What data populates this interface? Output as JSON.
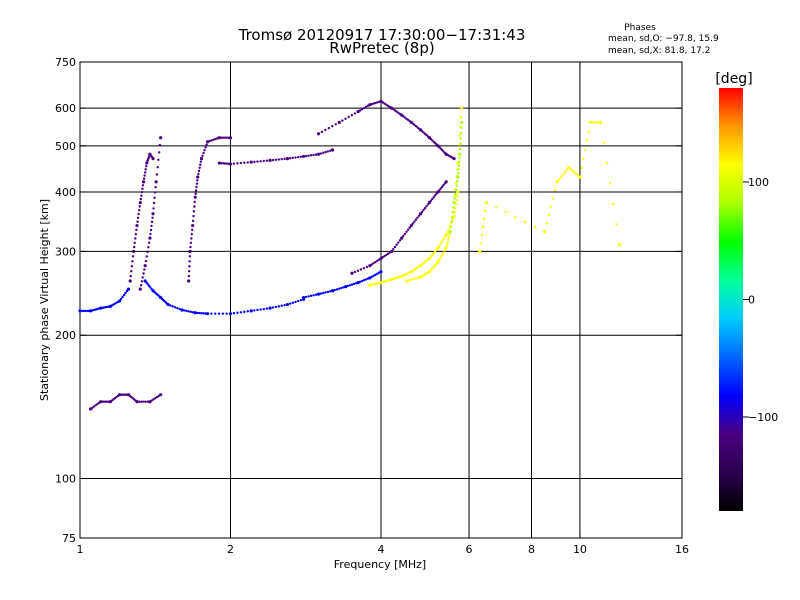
{
  "chart_data": {
    "type": "scatter",
    "title": "Tromsø 20120917 17:30:00−17:31:43",
    "subtitle": "RwPretec (8p)",
    "xlabel": "Frequency [MHz]",
    "ylabel": "Stationary phase Virtual Height [km]",
    "x_scale": "log",
    "y_scale": "log",
    "xlim": [
      1,
      16
    ],
    "ylim": [
      75,
      750
    ],
    "x_ticks": [
      {
        "value": 1,
        "label": "1"
      },
      {
        "value": 2,
        "label": "2"
      },
      {
        "value": 4,
        "label": "4"
      },
      {
        "value": 6,
        "label": "6"
      },
      {
        "value": 8,
        "label": "8"
      },
      {
        "value": 10,
        "label": "10"
      },
      {
        "value": 16,
        "label": "16"
      }
    ],
    "y_ticks": [
      {
        "value": 750,
        "label": "750"
      },
      {
        "value": 600,
        "label": "600"
      },
      {
        "value": 500,
        "label": "500"
      },
      {
        "value": 400,
        "label": "400"
      },
      {
        "value": 300,
        "label": "300"
      },
      {
        "value": 200,
        "label": "200"
      },
      {
        "value": 100,
        "label": "100"
      },
      {
        "value": 75,
        "label": "75"
      }
    ],
    "x_gridlines": [
      2,
      4,
      6,
      8,
      10
    ],
    "y_gridlines": [
      100,
      200,
      300,
      400,
      500,
      600
    ],
    "grid": true,
    "info": {
      "heading": "Phases",
      "line_o": "mean, sd,O: −97.8, 15.9",
      "line_x": "mean, sd,X:  81.8, 17.2"
    },
    "colorbar": {
      "unit": "[deg]",
      "range": [
        -180,
        180
      ],
      "ticks": [
        {
          "value": 100,
          "label": "100"
        },
        {
          "value": 0,
          "label": "0"
        },
        {
          "value": -100,
          "label": "−100"
        }
      ],
      "colors": [
        "#000000",
        "#2b004f",
        "#4b0082",
        "#0000ff",
        "#0066ff",
        "#00ccff",
        "#00ff99",
        "#00ff00",
        "#aaff00",
        "#ffff00",
        "#ff9900",
        "#ff0000"
      ]
    },
    "series": [
      {
        "traces": [
          {
            "freq_mhz": [
              1.0,
              1.05,
              1.1,
              1.15,
              1.2,
              1.25
            ],
            "height_km": [
              225,
              225,
              228,
              230,
              236,
              250
            ],
            "phase_deg": -95
          },
          {
            "freq_mhz": [
              1.26,
              1.28,
              1.3,
              1.32,
              1.34,
              1.36,
              1.38,
              1.4
            ],
            "height_km": [
              260,
              300,
              340,
              380,
              420,
              460,
              480,
              470
            ],
            "phase_deg": -100
          },
          {
            "freq_mhz": [
              1.32,
              1.35,
              1.38,
              1.4,
              1.42,
              1.45
            ],
            "height_km": [
              250,
              280,
              320,
              360,
              420,
              520
            ],
            "phase_deg": -105
          },
          {
            "freq_mhz": [
              1.35,
              1.4,
              1.45,
              1.5,
              1.6,
              1.7,
              1.8,
              2.0,
              2.2,
              2.4,
              2.6,
              2.8
            ],
            "height_km": [
              260,
              248,
              240,
              232,
              226,
              223,
              222,
              222,
              225,
              228,
              232,
              238
            ],
            "phase_deg": -98
          },
          {
            "freq_mhz": [
              2.8,
              3.0,
              3.2,
              3.4,
              3.6,
              3.8,
              4.0
            ],
            "height_km": [
              240,
              244,
              248,
              253,
              258,
              264,
              272
            ],
            "phase_deg": -95
          },
          {
            "freq_mhz": [
              1.05,
              1.1,
              1.15,
              1.2,
              1.25,
              1.3,
              1.38,
              1.45
            ],
            "height_km": [
              140,
              145,
              145,
              150,
              150,
              145,
              145,
              150
            ],
            "phase_deg": -100
          },
          {
            "freq_mhz": [
              1.65,
              1.66,
              1.68,
              1.7,
              1.72,
              1.75,
              1.8,
              1.9,
              2.0
            ],
            "height_km": [
              260,
              300,
              340,
              390,
              430,
              470,
              510,
              520,
              520
            ],
            "phase_deg": -100
          },
          {
            "freq_mhz": [
              1.9,
              2.0,
              2.2,
              2.4,
              2.6,
              2.8,
              3.0,
              3.2
            ],
            "height_km": [
              460,
              458,
              462,
              466,
              470,
              475,
              480,
              490
            ],
            "phase_deg": -100
          },
          {
            "freq_mhz": [
              3.0,
              3.3,
              3.6,
              3.8,
              4.0,
              4.2,
              4.4,
              4.6,
              4.8,
              5.0,
              5.2,
              5.4,
              5.6
            ],
            "height_km": [
              530,
              560,
              590,
              610,
              620,
              600,
              580,
              560,
              540,
              520,
              500,
              480,
              470
            ],
            "phase_deg": -100
          },
          {
            "freq_mhz": [
              3.5,
              3.8,
              4.0,
              4.2,
              4.4,
              4.6,
              4.8,
              5.0,
              5.2,
              5.4
            ],
            "height_km": [
              270,
              280,
              290,
              300,
              320,
              340,
              360,
              380,
              400,
              420
            ],
            "phase_deg": -100
          },
          {
            "freq_mhz": [
              3.8,
              4.0,
              4.2,
              4.4,
              4.6,
              4.8,
              5.0,
              5.2,
              5.4,
              5.6,
              5.7
            ],
            "height_km": [
              255,
              258,
              262,
              266,
              272,
              280,
              290,
              305,
              325,
              355,
              400
            ],
            "phase_deg": 100
          },
          {
            "freq_mhz": [
              4.5,
              4.8,
              5.0,
              5.2,
              5.4,
              5.5,
              5.6,
              5.7,
              5.8
            ],
            "height_km": [
              260,
              265,
              272,
              285,
              305,
              330,
              380,
              460,
              600
            ],
            "phase_deg": 110
          },
          {
            "freq_mhz": [
              5.5,
              5.6,
              5.7,
              5.75,
              5.8
            ],
            "height_km": [
              330,
              380,
              430,
              480,
              560
            ],
            "phase_deg": 90
          },
          {
            "freq_mhz": [
              6.3,
              6.5,
              8.5,
              9.0,
              9.5,
              10.0,
              10.5,
              11.0,
              12.0
            ],
            "height_km": [
              300,
              380,
              330,
              420,
              450,
              430,
              560,
              560,
              310
            ],
            "phase_deg": 120
          }
        ]
      }
    ]
  }
}
